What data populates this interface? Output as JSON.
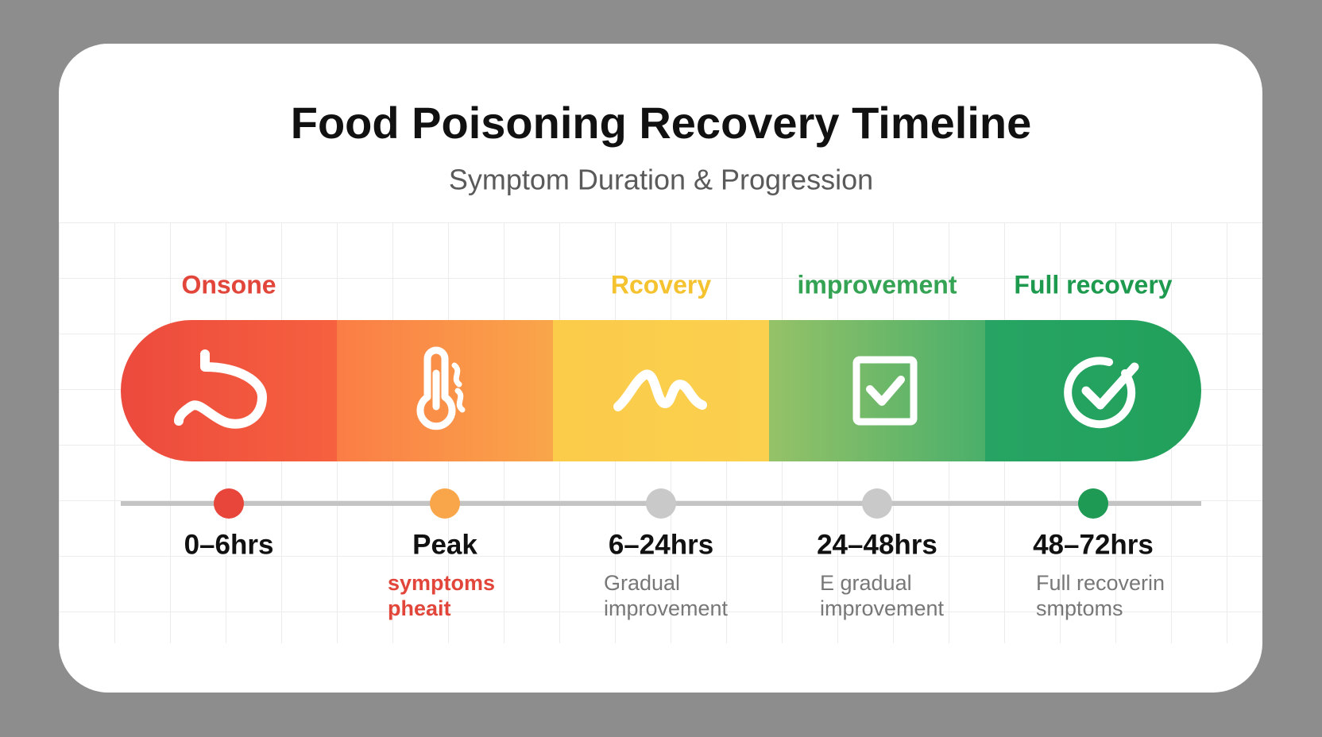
{
  "title": "Food Poisoning Recovery Timeline",
  "subtitle": "Symptom Duration & Progression",
  "stages": [
    {
      "label": "Onsone",
      "time": "0–6hrs",
      "description": []
    },
    {
      "time": "Peak",
      "description": [
        "symptoms",
        "pheait"
      ]
    },
    {
      "label": "Rcovery",
      "time": "6–24hrs",
      "description": [
        "Gradual",
        "improvement"
      ]
    },
    {
      "label": "improvement",
      "time": "24–48hrs",
      "description": [
        "E gradual",
        "improvement"
      ]
    },
    {
      "label": "Full recovery",
      "time": "48–72hrs",
      "description": [
        "Full recoverin",
        "smptoms"
      ]
    }
  ]
}
